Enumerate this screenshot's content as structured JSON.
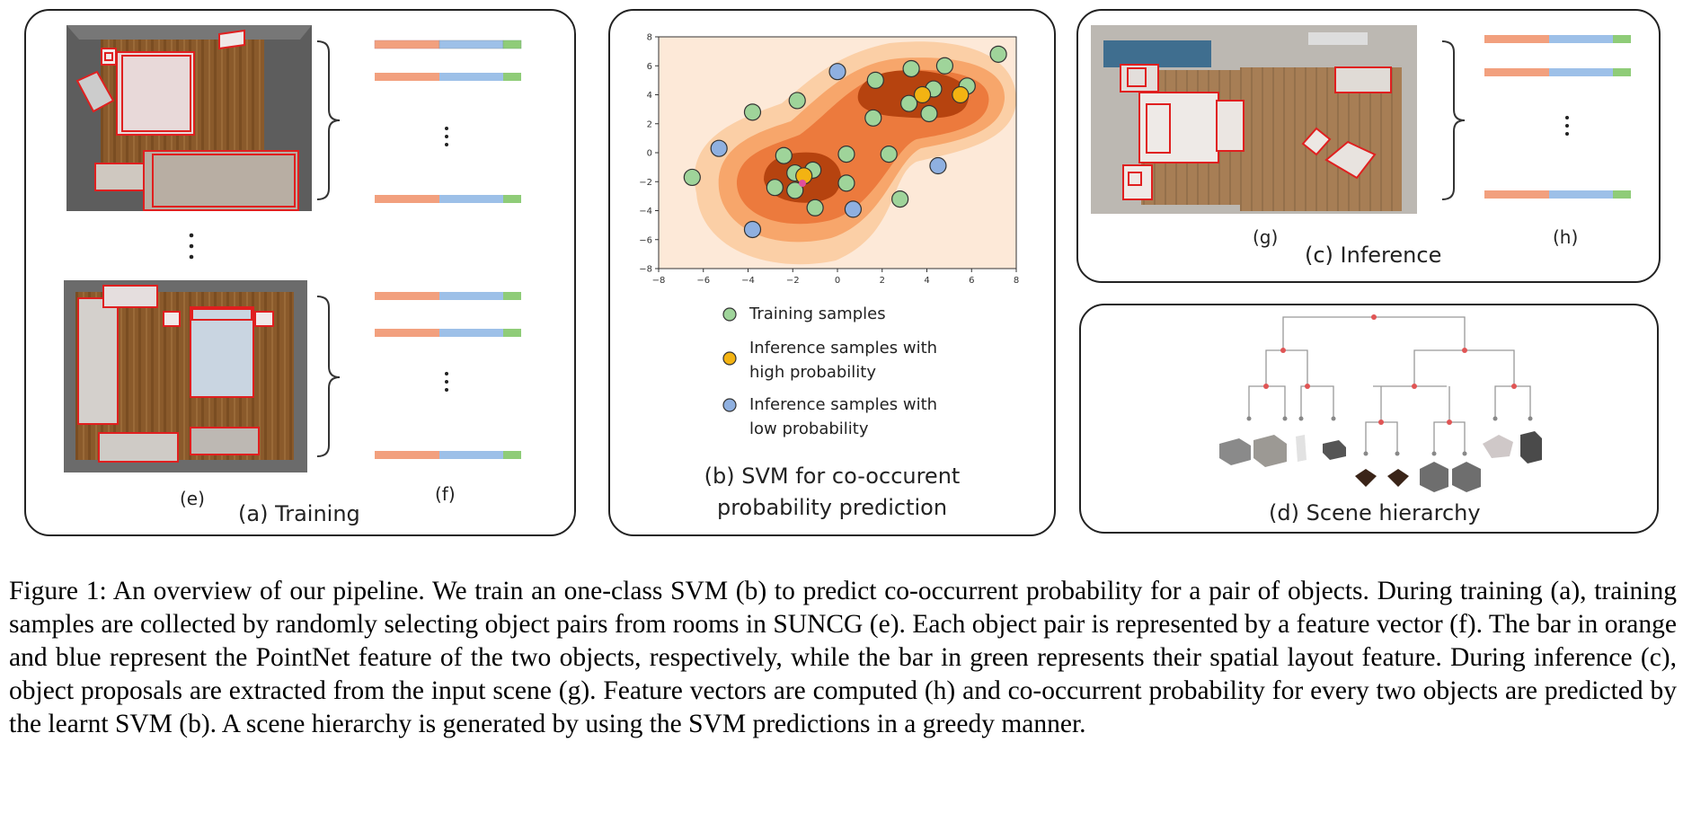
{
  "panels": {
    "training": {
      "caption": "(a) Training",
      "room_label": "(e)",
      "feature_label": "(f)"
    },
    "svm": {
      "caption_line1": "(b) SVM for co-occurent",
      "caption_line2": "probability prediction",
      "legend": [
        {
          "label_line1": "Training samples",
          "label_line2": "",
          "color": "#9fd49a"
        },
        {
          "label_line1": "Inference samples with",
          "label_line2": "high probability",
          "color": "#f3b312"
        },
        {
          "label_line1": "Inference samples with",
          "label_line2": "low probability",
          "color": "#8fb0e0"
        }
      ]
    },
    "inference": {
      "caption": "(c) Inference",
      "scene_label": "(g)",
      "feature_label": "(h)"
    },
    "hierarchy": {
      "caption": "(d) Scene hierarchy"
    }
  },
  "feature_bar_colors": {
    "orange": "#f2a07e",
    "blue": "#9dc0e8",
    "green": "#8fcc78"
  },
  "chart_data": {
    "type": "scatter",
    "title": "",
    "xlabel": "",
    "ylabel": "",
    "xlim": [
      -8,
      8
    ],
    "ylim": [
      -8,
      8
    ],
    "xticks": [
      "−8",
      "−6",
      "−4",
      "−2",
      "0",
      "2",
      "4",
      "6",
      "8"
    ],
    "yticks": [
      "8",
      "6",
      "4",
      "2",
      "0",
      "−2",
      "−4",
      "−6",
      "−8"
    ],
    "series": [
      {
        "name": "Training samples",
        "color": "#9fd49a",
        "points": [
          [
            -6.5,
            -1.7
          ],
          [
            -3.8,
            2.8
          ],
          [
            -1.8,
            3.6
          ],
          [
            -2.8,
            -2.4
          ],
          [
            -2.4,
            -0.2
          ],
          [
            -1.9,
            -1.4
          ],
          [
            -1.9,
            -2.6
          ],
          [
            -1.1,
            -1.2
          ],
          [
            -1.0,
            -3.8
          ],
          [
            0.4,
            -0.1
          ],
          [
            0.4,
            -2.1
          ],
          [
            1.6,
            2.4
          ],
          [
            1.7,
            5.0
          ],
          [
            2.8,
            -3.2
          ],
          [
            2.3,
            -0.1
          ],
          [
            3.3,
            5.8
          ],
          [
            3.2,
            3.4
          ],
          [
            4.1,
            2.7
          ],
          [
            4.3,
            4.4
          ],
          [
            4.8,
            6.0
          ],
          [
            5.8,
            4.6
          ],
          [
            7.2,
            6.8
          ]
        ]
      },
      {
        "name": "Inference samples with high probability",
        "color": "#f3b312",
        "points": [
          [
            -1.5,
            -1.6
          ],
          [
            3.8,
            4.0
          ],
          [
            5.5,
            4.0
          ]
        ]
      },
      {
        "name": "Inference samples with low probability",
        "color": "#8fb0e0",
        "points": [
          [
            -5.3,
            0.3
          ],
          [
            -3.8,
            -5.3
          ],
          [
            0.0,
            5.6
          ],
          [
            0.7,
            -3.9
          ],
          [
            4.5,
            -0.9
          ]
        ]
      }
    ]
  },
  "caption": {
    "text": "Figure 1: An overview of our pipeline. We train an one-class SVM (b) to predict co-occurrent probability for a pair of objects. During training (a), training samples are collected by randomly selecting object pairs from rooms in SUNCG (e). Each object pair is represented by a feature vector (f). The bar in orange and blue represent the PointNet feature of the two objects, respectively, while the bar in green represents their spatial layout feature. During inference (c), object proposals are extracted from the input scene (g). Feature vectors are computed (h) and co-occurrent probability for every two objects are predicted by the learnt SVM (b). A scene hierarchy is generated by using the SVM predictions in a greedy manner."
  }
}
